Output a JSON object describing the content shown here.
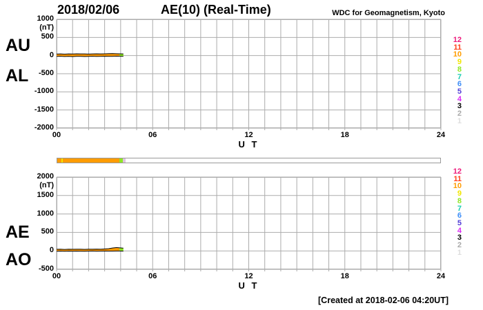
{
  "title": {
    "date": "2018/02/06",
    "main": "AE(10) (Real-Time)",
    "source": "WDC for Geomagnetism, Kyoto"
  },
  "footer": {
    "created": "[Created at 2018-02-06 04:20UT]"
  },
  "station_legend": {
    "values": [
      "12",
      "11",
      "10",
      "9",
      "8",
      "7",
      "6",
      "5",
      "4",
      "3",
      "2",
      "1"
    ],
    "colors": [
      "#ED1A7B",
      "#FF4019",
      "#FF9C00",
      "#F2E500",
      "#8FE624",
      "#17CDB2",
      "#3E8EF7",
      "#5240D6",
      "#D929F2",
      "#000000",
      "#A9A9A9",
      "#DEDEDE"
    ]
  },
  "availability_bar": {
    "xlim": [
      0,
      24
    ],
    "segments": [
      {
        "from": 0,
        "to": 0.28,
        "color": "#FF9C00"
      },
      {
        "from": 0.28,
        "to": 0.34,
        "color": "#F2E500"
      },
      {
        "from": 0.34,
        "to": 3.91,
        "color": "#FF9C00"
      },
      {
        "from": 3.91,
        "to": 4.12,
        "color": "#8FE624"
      },
      {
        "from": 4.12,
        "to": 4.28,
        "color": "#DFC3DF"
      },
      {
        "from": 4.28,
        "to": 24,
        "color": "#FFFFFF"
      }
    ]
  },
  "chart_data": [
    {
      "id": "au-al",
      "type": "line",
      "title": "AU / AL auroral electrojet indices, 2018/02/06 (Real-Time)",
      "left_labels": [
        "AU",
        "AL"
      ],
      "unit": "(nT)",
      "xlabel": "U T",
      "xlim": [
        0,
        24
      ],
      "ylim": [
        -2000,
        1000
      ],
      "grid": true,
      "y_ticks": [
        {
          "v": 1000,
          "label": "1000"
        },
        {
          "v": 500,
          "label": "500"
        },
        {
          "v": 0,
          "label": "0"
        },
        {
          "v": -500,
          "label": "-500"
        },
        {
          "v": -1000,
          "label": "-1000"
        },
        {
          "v": -1500,
          "label": "-1500"
        },
        {
          "v": -2000,
          "label": "-2000"
        }
      ],
      "x_ticks": [
        {
          "v": 0,
          "label": "00"
        },
        {
          "v": 6,
          "label": "06"
        },
        {
          "v": 12,
          "label": "12"
        },
        {
          "v": 18,
          "label": "18"
        },
        {
          "v": 24,
          "label": "24"
        }
      ],
      "x": [
        0,
        0.25,
        0.5,
        0.75,
        1,
        1.25,
        1.5,
        1.75,
        2,
        2.25,
        2.5,
        2.75,
        3,
        3.25,
        3.5,
        3.75,
        3.93,
        4.17
      ],
      "series": [
        {
          "name": "AU",
          "values": [
            42,
            45,
            40,
            46,
            43,
            48,
            44,
            47,
            42,
            46,
            49,
            45,
            48,
            52,
            55,
            50,
            48,
            46
          ]
        },
        {
          "name": "AL",
          "values": [
            -22,
            -18,
            -25,
            -20,
            -27,
            -22,
            -19,
            -26,
            -22,
            -18,
            -24,
            -20,
            -18,
            -22,
            -19,
            -16,
            -18,
            -20
          ]
        }
      ],
      "band_segments": [
        {
          "from": 0,
          "to": 3.93,
          "color": "#FF9C00"
        },
        {
          "from": 3.93,
          "to": 4.17,
          "color": "#8FE624"
        }
      ]
    },
    {
      "id": "ae-ao",
      "type": "line",
      "title": "AE / AO auroral electrojet indices, 2018/02/06 (Real-Time)",
      "left_labels": [
        "AE",
        "AO"
      ],
      "unit": "(nT)",
      "xlabel": "U T",
      "xlim": [
        0,
        24
      ],
      "ylim": [
        -500,
        2000
      ],
      "grid": true,
      "y_ticks": [
        {
          "v": 2000,
          "label": "2000"
        },
        {
          "v": 1500,
          "label": "1500"
        },
        {
          "v": 1000,
          "label": "1000"
        },
        {
          "v": 500,
          "label": "500"
        },
        {
          "v": 0,
          "label": "0"
        },
        {
          "v": -500,
          "label": "-500"
        }
      ],
      "x_ticks": [
        {
          "v": 0,
          "label": "00"
        },
        {
          "v": 6,
          "label": "06"
        },
        {
          "v": 12,
          "label": "12"
        },
        {
          "v": 18,
          "label": "18"
        },
        {
          "v": 24,
          "label": "24"
        }
      ],
      "x": [
        0,
        0.25,
        0.5,
        0.75,
        1,
        1.25,
        1.5,
        1.75,
        2,
        2.25,
        2.5,
        2.75,
        3,
        3.25,
        3.5,
        3.75,
        3.93,
        4.17
      ],
      "series": [
        {
          "name": "AE",
          "values": [
            42,
            44,
            40,
            46,
            42,
            47,
            44,
            41,
            46,
            44,
            49,
            46,
            52,
            60,
            78,
            90,
            82,
            72
          ]
        },
        {
          "name": "AO",
          "values": [
            -7,
            -5,
            -9,
            -6,
            -8,
            -5,
            -7,
            -9,
            -6,
            -4,
            -7,
            -5,
            -4,
            -6,
            -5,
            -3,
            -4,
            -5
          ]
        }
      ],
      "band_segments": [
        {
          "from": 0,
          "to": 3.93,
          "color": "#FF9C00"
        },
        {
          "from": 3.93,
          "to": 4.17,
          "color": "#8FE624"
        }
      ]
    }
  ]
}
